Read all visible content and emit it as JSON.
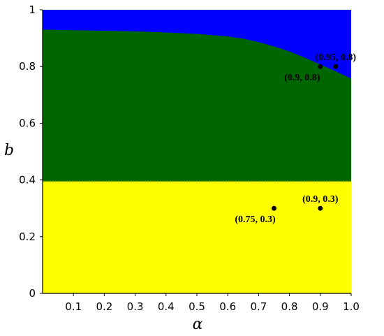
{
  "chart_data": {
    "type": "area",
    "xlabel": "α",
    "ylabel": "b",
    "xlim": [
      0,
      1
    ],
    "ylim": [
      0,
      1
    ],
    "x_ticks": [
      "0.1",
      "0.2",
      "0.3",
      "0.4",
      "0.5",
      "0.6",
      "0.7",
      "0.8",
      "0.9",
      "1.0"
    ],
    "y_ticks": [
      "0",
      "0.2",
      "0.4",
      "0.6",
      "0.8",
      "1"
    ],
    "regions": [
      {
        "color": "#ffff00",
        "description": "b < 0.395",
        "lower": 0,
        "upper_const": 0.395
      },
      {
        "color": "#006600",
        "lower_const": 0.395,
        "upper_curve": {
          "x": [
            0,
            0.1,
            0.2,
            0.3,
            0.4,
            0.5,
            0.6,
            0.65,
            0.7,
            0.75,
            0.8,
            0.85,
            0.9,
            0.95,
            1.0
          ],
          "y": [
            0.93,
            0.928,
            0.926,
            0.924,
            0.92,
            0.915,
            0.906,
            0.898,
            0.886,
            0.871,
            0.853,
            0.831,
            0.807,
            0.783,
            0.757
          ]
        }
      },
      {
        "color": "#0000ff",
        "description": "above boundary curve",
        "upper": 1
      }
    ],
    "points": [
      {
        "x": 0.9,
        "y": 0.8,
        "label": "(0.9, 0.8)",
        "label_pos": "below-left"
      },
      {
        "x": 0.95,
        "y": 0.8,
        "label": "(0.95, 0.8)",
        "label_pos": "above"
      },
      {
        "x": 0.75,
        "y": 0.3,
        "label": "(0.75, 0.3)",
        "label_pos": "below"
      },
      {
        "x": 0.9,
        "y": 0.3,
        "label": "(0.9, 0.3)",
        "label_pos": "above"
      }
    ]
  }
}
